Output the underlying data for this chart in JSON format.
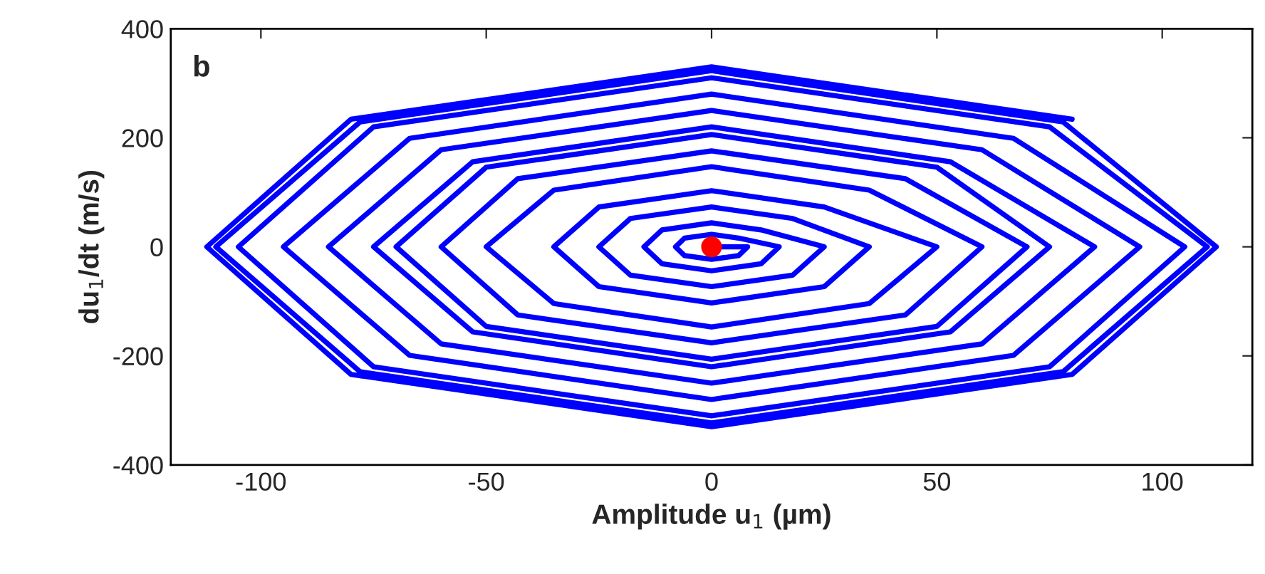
{
  "chart_data": {
    "type": "line",
    "xlabel": "Amplitude u$_{1}$ (µm)",
    "ylabel": "du$_{1}$/dt (m/s)",
    "annotations": [
      "b"
    ],
    "xlim": [
      -120,
      120
    ],
    "ylim": [
      -400,
      400
    ],
    "xticks": [
      -100,
      -50,
      0,
      50,
      100
    ],
    "yticks": [
      -400,
      -200,
      0,
      200,
      400
    ],
    "grid": false,
    "legend": false,
    "series": [
      {
        "color": "#0000ff",
        "marker": "none",
        "line_style": "solid",
        "x": [
          0,
          8,
          6,
          0,
          -6,
          -8,
          -6,
          0,
          6,
          15,
          11,
          0,
          -11,
          -15,
          -11,
          0,
          11,
          25,
          18,
          0,
          -18,
          -25,
          -18,
          0,
          18,
          35,
          25,
          0,
          -25,
          -35,
          -25,
          0,
          25,
          50,
          35,
          0,
          -35,
          -50,
          -35,
          0,
          35,
          60,
          43,
          0,
          -43,
          -60,
          -43,
          0,
          43,
          70,
          50,
          0,
          -50,
          -70,
          -50,
          0,
          50,
          75,
          53,
          0,
          -53,
          -75,
          -53,
          0,
          53,
          85,
          60,
          0,
          -60,
          -85,
          -60,
          0,
          60,
          95,
          67,
          0,
          -67,
          -95,
          -67,
          0,
          67,
          105,
          75,
          0,
          -75,
          -105,
          -75,
          0,
          75,
          110,
          78,
          0,
          -78,
          -110,
          -78,
          0,
          78,
          112,
          80,
          0,
          -80,
          -112,
          -80,
          0,
          80
        ],
        "values": [
          0,
          0,
          -16,
          -23,
          -16,
          0,
          16,
          23,
          16,
          0,
          -31,
          -44,
          -31,
          0,
          31,
          44,
          31,
          0,
          -52,
          -73,
          -52,
          0,
          52,
          73,
          52,
          0,
          -73,
          -103,
          -73,
          0,
          73,
          103,
          73,
          0,
          -104,
          -147,
          -104,
          0,
          104,
          147,
          104,
          0,
          -125,
          -176,
          -125,
          0,
          125,
          176,
          125,
          0,
          -146,
          -206,
          -146,
          0,
          146,
          206,
          146,
          0,
          -156,
          -220,
          -156,
          0,
          156,
          220,
          156,
          0,
          -178,
          -250,
          -178,
          0,
          178,
          250,
          178,
          0,
          -199,
          -280,
          -199,
          0,
          199,
          280,
          199,
          0,
          -220,
          -310,
          -220,
          0,
          220,
          310,
          220,
          0,
          -229,
          -323,
          -229,
          0,
          229,
          323,
          229,
          0,
          -234,
          -330,
          -234,
          0,
          234,
          330,
          234
        ]
      },
      {
        "type": "scatter",
        "color": "#ff0000",
        "marker": "circle",
        "x": [
          0
        ],
        "values": [
          0
        ]
      }
    ]
  }
}
